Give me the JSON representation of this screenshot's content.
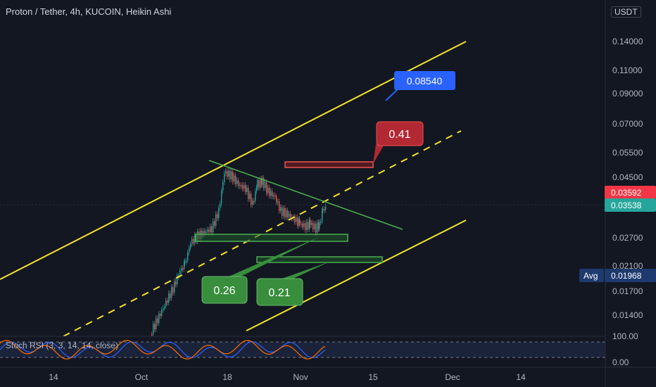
{
  "header": {
    "title": "Proton / Tether, 4h, KUCOIN, Heikin Ashi",
    "currency": "USDT"
  },
  "colors": {
    "background": "#131722",
    "up": "#26a69a",
    "down": "#ef5350",
    "channel": "#f4e22c",
    "triangle": "#4caf50",
    "stoch_k": "#2962ff",
    "stoch_d": "#ff6d00",
    "current_price_badge": "#26a69a",
    "last_price_badge": "#f23645",
    "avg_badge": "#1e3a6e"
  },
  "chart_data": {
    "type": "candlestick",
    "scale": "log",
    "y_axis_ticks": [
      "0.14000",
      "0.11000",
      "0.09000",
      "0.07000",
      "0.05500",
      "0.04500",
      "0.02700",
      "0.02100",
      "0.01700",
      "0.01400"
    ],
    "x_axis_ticks": [
      "14",
      "Oct",
      "18",
      "Nov",
      "15",
      "Dec",
      "14"
    ],
    "price_badges": [
      {
        "label": "0.03592",
        "kind": "last"
      },
      {
        "label": "0.03538",
        "kind": "current"
      },
      {
        "label": "0.01968",
        "kind": "avg",
        "tag": "Avg"
      }
    ],
    "callouts": [
      {
        "label": "0.08540",
        "color": "#2962ff"
      },
      {
        "label": "0.41",
        "color": "#b22833"
      },
      {
        "label": "0.26",
        "color": "#388e3c"
      },
      {
        "label": "0.21",
        "color": "#388e3c"
      }
    ],
    "stoch_rsi": {
      "label": "Stoch RSI (3, 3, 14, 14, close)",
      "ticks": [
        "100.00",
        "0.00"
      ]
    }
  }
}
